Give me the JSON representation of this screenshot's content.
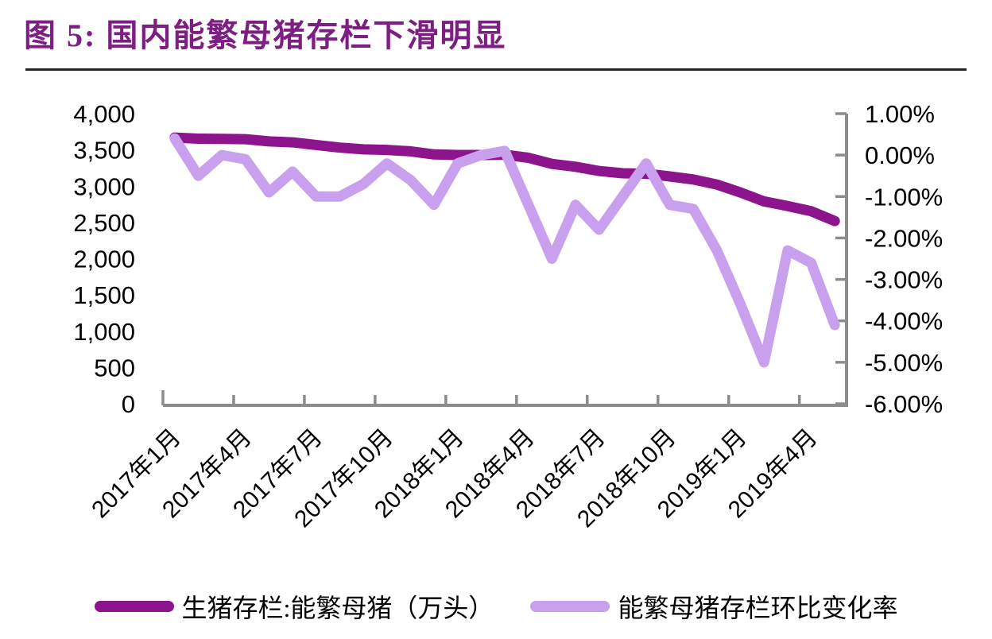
{
  "figure": {
    "title": "图 5:  国内能繁母猪存栏下滑明显",
    "title_color": "#7D1E82"
  },
  "chart_data": {
    "type": "line",
    "title": "国内能繁母猪存栏下滑明显",
    "categories": [
      "2017年1月",
      "2017年2月",
      "2017年3月",
      "2017年4月",
      "2017年5月",
      "2017年6月",
      "2017年7月",
      "2017年8月",
      "2017年9月",
      "2017年10月",
      "2017年11月",
      "2017年12月",
      "2018年1月",
      "2018年2月",
      "2018年3月",
      "2018年4月",
      "2018年5月",
      "2018年6月",
      "2018年7月",
      "2018年8月",
      "2018年9月",
      "2018年10月",
      "2018年11月",
      "2018年12月",
      "2019年1月",
      "2019年2月",
      "2019年3月",
      "2019年4月",
      "2019年5月"
    ],
    "x_tick_labels": [
      "2017年1月",
      "2017年4月",
      "2017年7月",
      "2017年10月",
      "2018年1月",
      "2018年4月",
      "2018年7月",
      "2018年10月",
      "2019年1月",
      "2019年4月"
    ],
    "series": [
      {
        "name": "生猪存栏:能繁母猪（万头）",
        "axis": "left",
        "color": "#8C148C",
        "values": [
          3670,
          3655,
          3652,
          3648,
          3618,
          3604,
          3568,
          3532,
          3508,
          3500,
          3480,
          3438,
          3430,
          3430,
          3433,
          3392,
          3307,
          3268,
          3210,
          3178,
          3172,
          3134,
          3093,
          3022,
          2913,
          2790,
          2726,
          2655,
          2520
        ]
      },
      {
        "name": "能繁母猪存栏环比变化率",
        "axis": "right",
        "color": "#C9A0EE",
        "values": [
          0.4,
          -0.5,
          0.0,
          -0.1,
          -0.9,
          -0.4,
          -1.0,
          -1.0,
          -0.7,
          -0.2,
          -0.6,
          -1.2,
          -0.2,
          0.0,
          0.1,
          -1.2,
          -2.5,
          -1.2,
          -1.8,
          -1.0,
          -0.2,
          -1.2,
          -1.3,
          -2.3,
          -3.6,
          -5.0,
          -2.3,
          -2.6,
          -4.1
        ]
      }
    ],
    "left_axis": {
      "min": 0,
      "max": 4000,
      "tick_labels": [
        "4,000",
        "3,500",
        "3,000",
        "2,500",
        "2,000",
        "1,500",
        "1,000",
        "500",
        "0"
      ]
    },
    "right_axis": {
      "min": -6,
      "max": 1,
      "tick_labels": [
        "1.00%",
        "0.00%",
        "-1.00%",
        "-2.00%",
        "-3.00%",
        "-4.00%",
        "-5.00%",
        "-6.00%"
      ]
    },
    "legend_position": "bottom",
    "grid": false
  }
}
